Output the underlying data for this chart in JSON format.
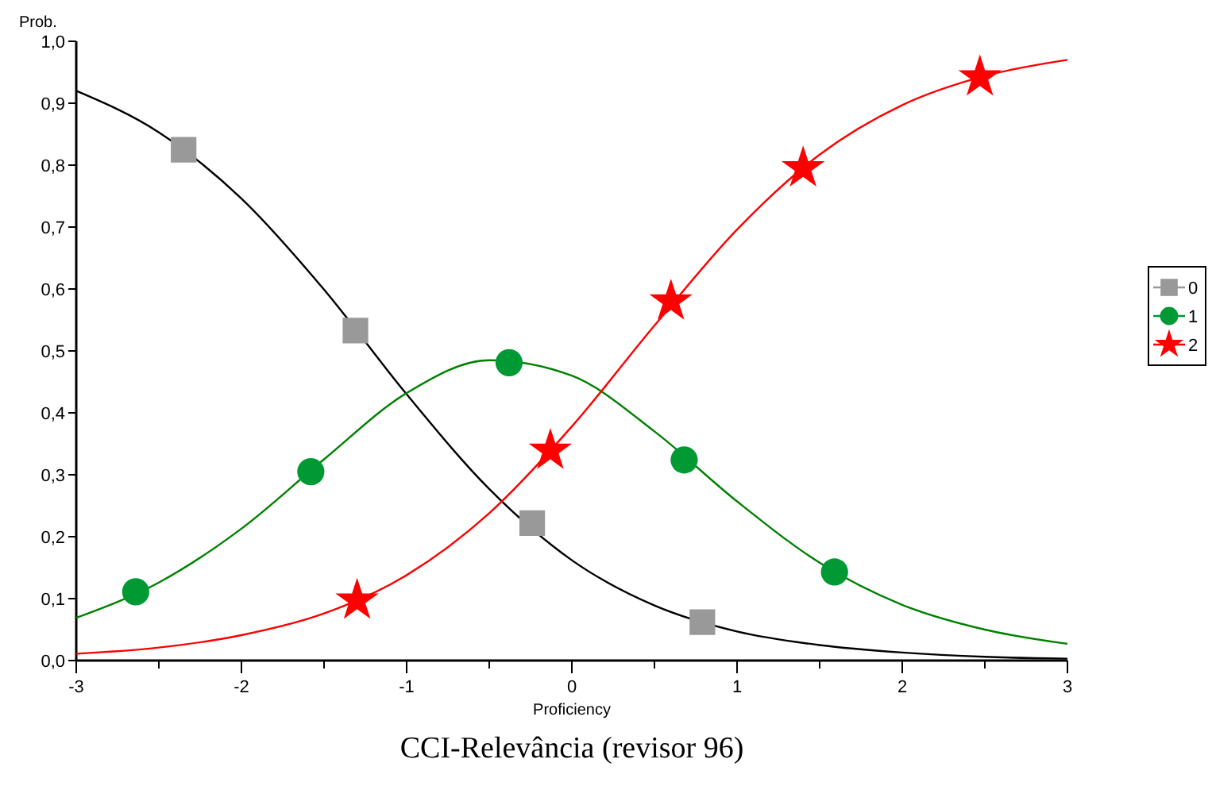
{
  "chart_data": {
    "type": "line",
    "title": "CCI-Relevância (revisor 96)",
    "xlabel": "Proficiency",
    "ylabel": "Prob.",
    "xlim": [
      -3,
      3
    ],
    "ylim": [
      0,
      1
    ],
    "xticks": [
      -3,
      {
        "value": -2.5,
        "label": null
      },
      -2,
      {
        "value": -1.5,
        "label": null
      },
      -1,
      {
        "value": -0.5,
        "label": null
      },
      0,
      {
        "value": 0.5,
        "label": null
      },
      1,
      {
        "value": 1.5,
        "label": null
      },
      2,
      {
        "value": 2.5,
        "label": null
      },
      3
    ],
    "yticks": [
      {
        "value": 0,
        "label": "0,0"
      },
      {
        "value": 0.1,
        "label": "0,1"
      },
      {
        "value": 0.2,
        "label": "0,2"
      },
      {
        "value": 0.3,
        "label": "0,3"
      },
      {
        "value": 0.4,
        "label": "0,4"
      },
      {
        "value": 0.5,
        "label": "0,5"
      },
      {
        "value": 0.6,
        "label": "0,6"
      },
      {
        "value": 0.7,
        "label": "0,7"
      },
      {
        "value": 0.8,
        "label": "0,8"
      },
      {
        "value": 0.9,
        "label": "0,9"
      },
      {
        "value": 1,
        "label": "1,0"
      }
    ],
    "grid": false,
    "legend": "right",
    "series": [
      {
        "color": "#000000",
        "marker": "none",
        "x": [
          -3,
          -2.5,
          -2,
          -1.5,
          -1,
          -0.5,
          0,
          0.5,
          1,
          1.5,
          2,
          2.5,
          3
        ],
        "values": [
          0.92,
          0.853,
          0.746,
          0.599,
          0.43,
          0.277,
          0.162,
          0.089,
          0.047,
          0.025,
          0.013,
          0.006,
          0.003
        ]
      },
      {
        "color": "#008000",
        "marker": "none",
        "x": [
          -3,
          -2.5,
          -2,
          -1.5,
          -1,
          -0.5,
          0,
          0.5,
          1,
          1.5,
          2,
          2.5,
          3
        ],
        "values": [
          0.069,
          0.126,
          0.213,
          0.325,
          0.432,
          0.485,
          0.46,
          0.37,
          0.257,
          0.158,
          0.09,
          0.05,
          0.027
        ]
      },
      {
        "color": "#ff0000",
        "marker": "none",
        "x": [
          -3,
          -2.5,
          -2,
          -1.5,
          -1,
          -0.5,
          0,
          0.5,
          1,
          1.5,
          2,
          2.5,
          3
        ],
        "values": [
          0.011,
          0.021,
          0.041,
          0.076,
          0.138,
          0.238,
          0.378,
          0.541,
          0.696,
          0.817,
          0.897,
          0.944,
          0.97
        ]
      },
      {
        "type": "scatter",
        "name": "0",
        "color": "#999999",
        "marker": "square",
        "x": [
          -2.35,
          -1.31,
          -0.24,
          0.79
        ],
        "values": [
          0.825,
          0.533,
          0.222,
          0.062
        ]
      },
      {
        "type": "scatter",
        "name": "1",
        "color": "#009933",
        "marker": "circle",
        "x": [
          -2.64,
          -1.58,
          -0.38,
          0.68,
          1.59
        ],
        "values": [
          0.111,
          0.305,
          0.481,
          0.324,
          0.143
        ]
      },
      {
        "type": "scatter",
        "name": "2",
        "color": "#ff0000",
        "marker": "star",
        "x": [
          -1.3,
          -0.13,
          0.6,
          1.4,
          2.47
        ],
        "values": [
          0.097,
          0.339,
          0.58,
          0.795,
          0.942
        ]
      }
    ]
  }
}
